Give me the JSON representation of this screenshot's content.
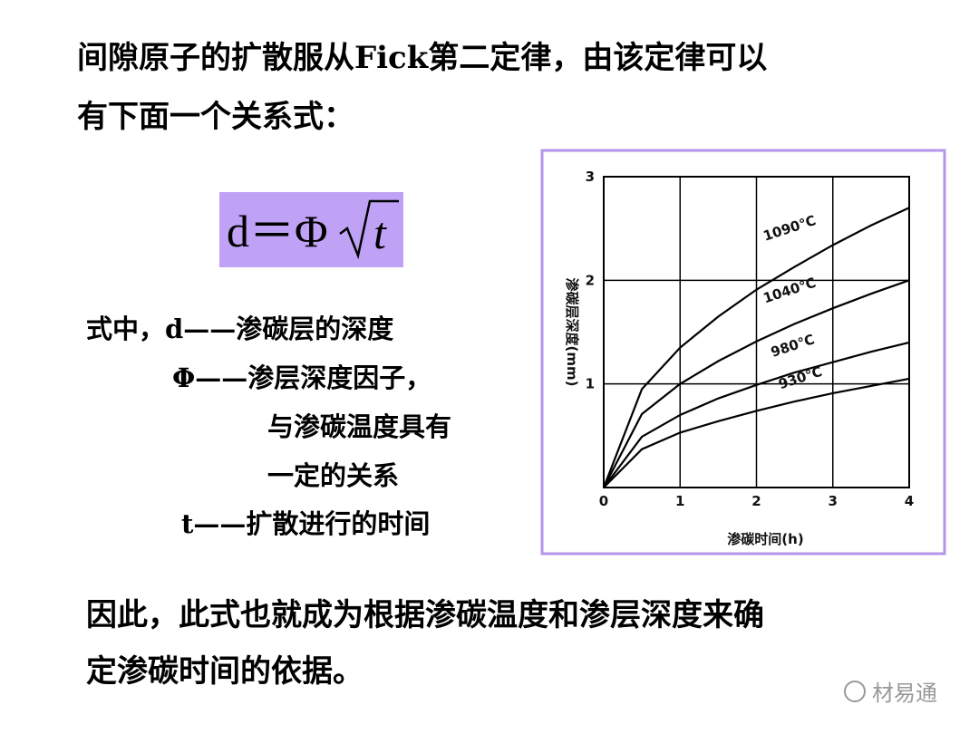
{
  "heading": [
    "间隙原子的扩散服从Fick第二定律，由该定律可以",
    "有下面一个关系式："
  ],
  "formula": {
    "left": "d＝Φ",
    "radicand": "t"
  },
  "definitions": [
    "式中，d——渗碳层的深度",
    "Φ——渗层深度因子，",
    "与渗碳温度具有",
    "一定的关系",
    "t——扩散进行的时间"
  ],
  "conclusion": [
    "因此，此式也就成为根据渗碳温度和渗层深度来确",
    "定渗碳时间的依据。"
  ],
  "watermark": "材易通",
  "chart_data": {
    "type": "line",
    "x_label": "渗碳时间(h)",
    "y_label": "渗碳层深度(mm)",
    "x": [
      0,
      0.5,
      1,
      1.5,
      2,
      2.5,
      3,
      3.5,
      4
    ],
    "series": [
      {
        "name": "1090℃",
        "color": "#000000",
        "values": [
          0,
          0.95,
          1.35,
          1.65,
          1.91,
          2.13,
          2.34,
          2.53,
          2.7
        ]
      },
      {
        "name": "1040℃",
        "color": "#000000",
        "values": [
          0,
          0.71,
          1.0,
          1.22,
          1.41,
          1.58,
          1.73,
          1.87,
          2.0
        ]
      },
      {
        "name": "980℃",
        "color": "#000000",
        "values": [
          0,
          0.49,
          0.7,
          0.86,
          0.99,
          1.11,
          1.21,
          1.31,
          1.4
        ]
      },
      {
        "name": "930℃",
        "color": "#000000",
        "values": [
          0,
          0.37,
          0.53,
          0.64,
          0.74,
          0.83,
          0.91,
          0.98,
          1.05
        ]
      }
    ],
    "xlim": [
      0,
      4
    ],
    "ylim": [
      0,
      3
    ],
    "xticks": [
      0,
      1,
      2,
      3,
      4
    ],
    "yticks": [
      1,
      2,
      3
    ],
    "grid": true
  }
}
